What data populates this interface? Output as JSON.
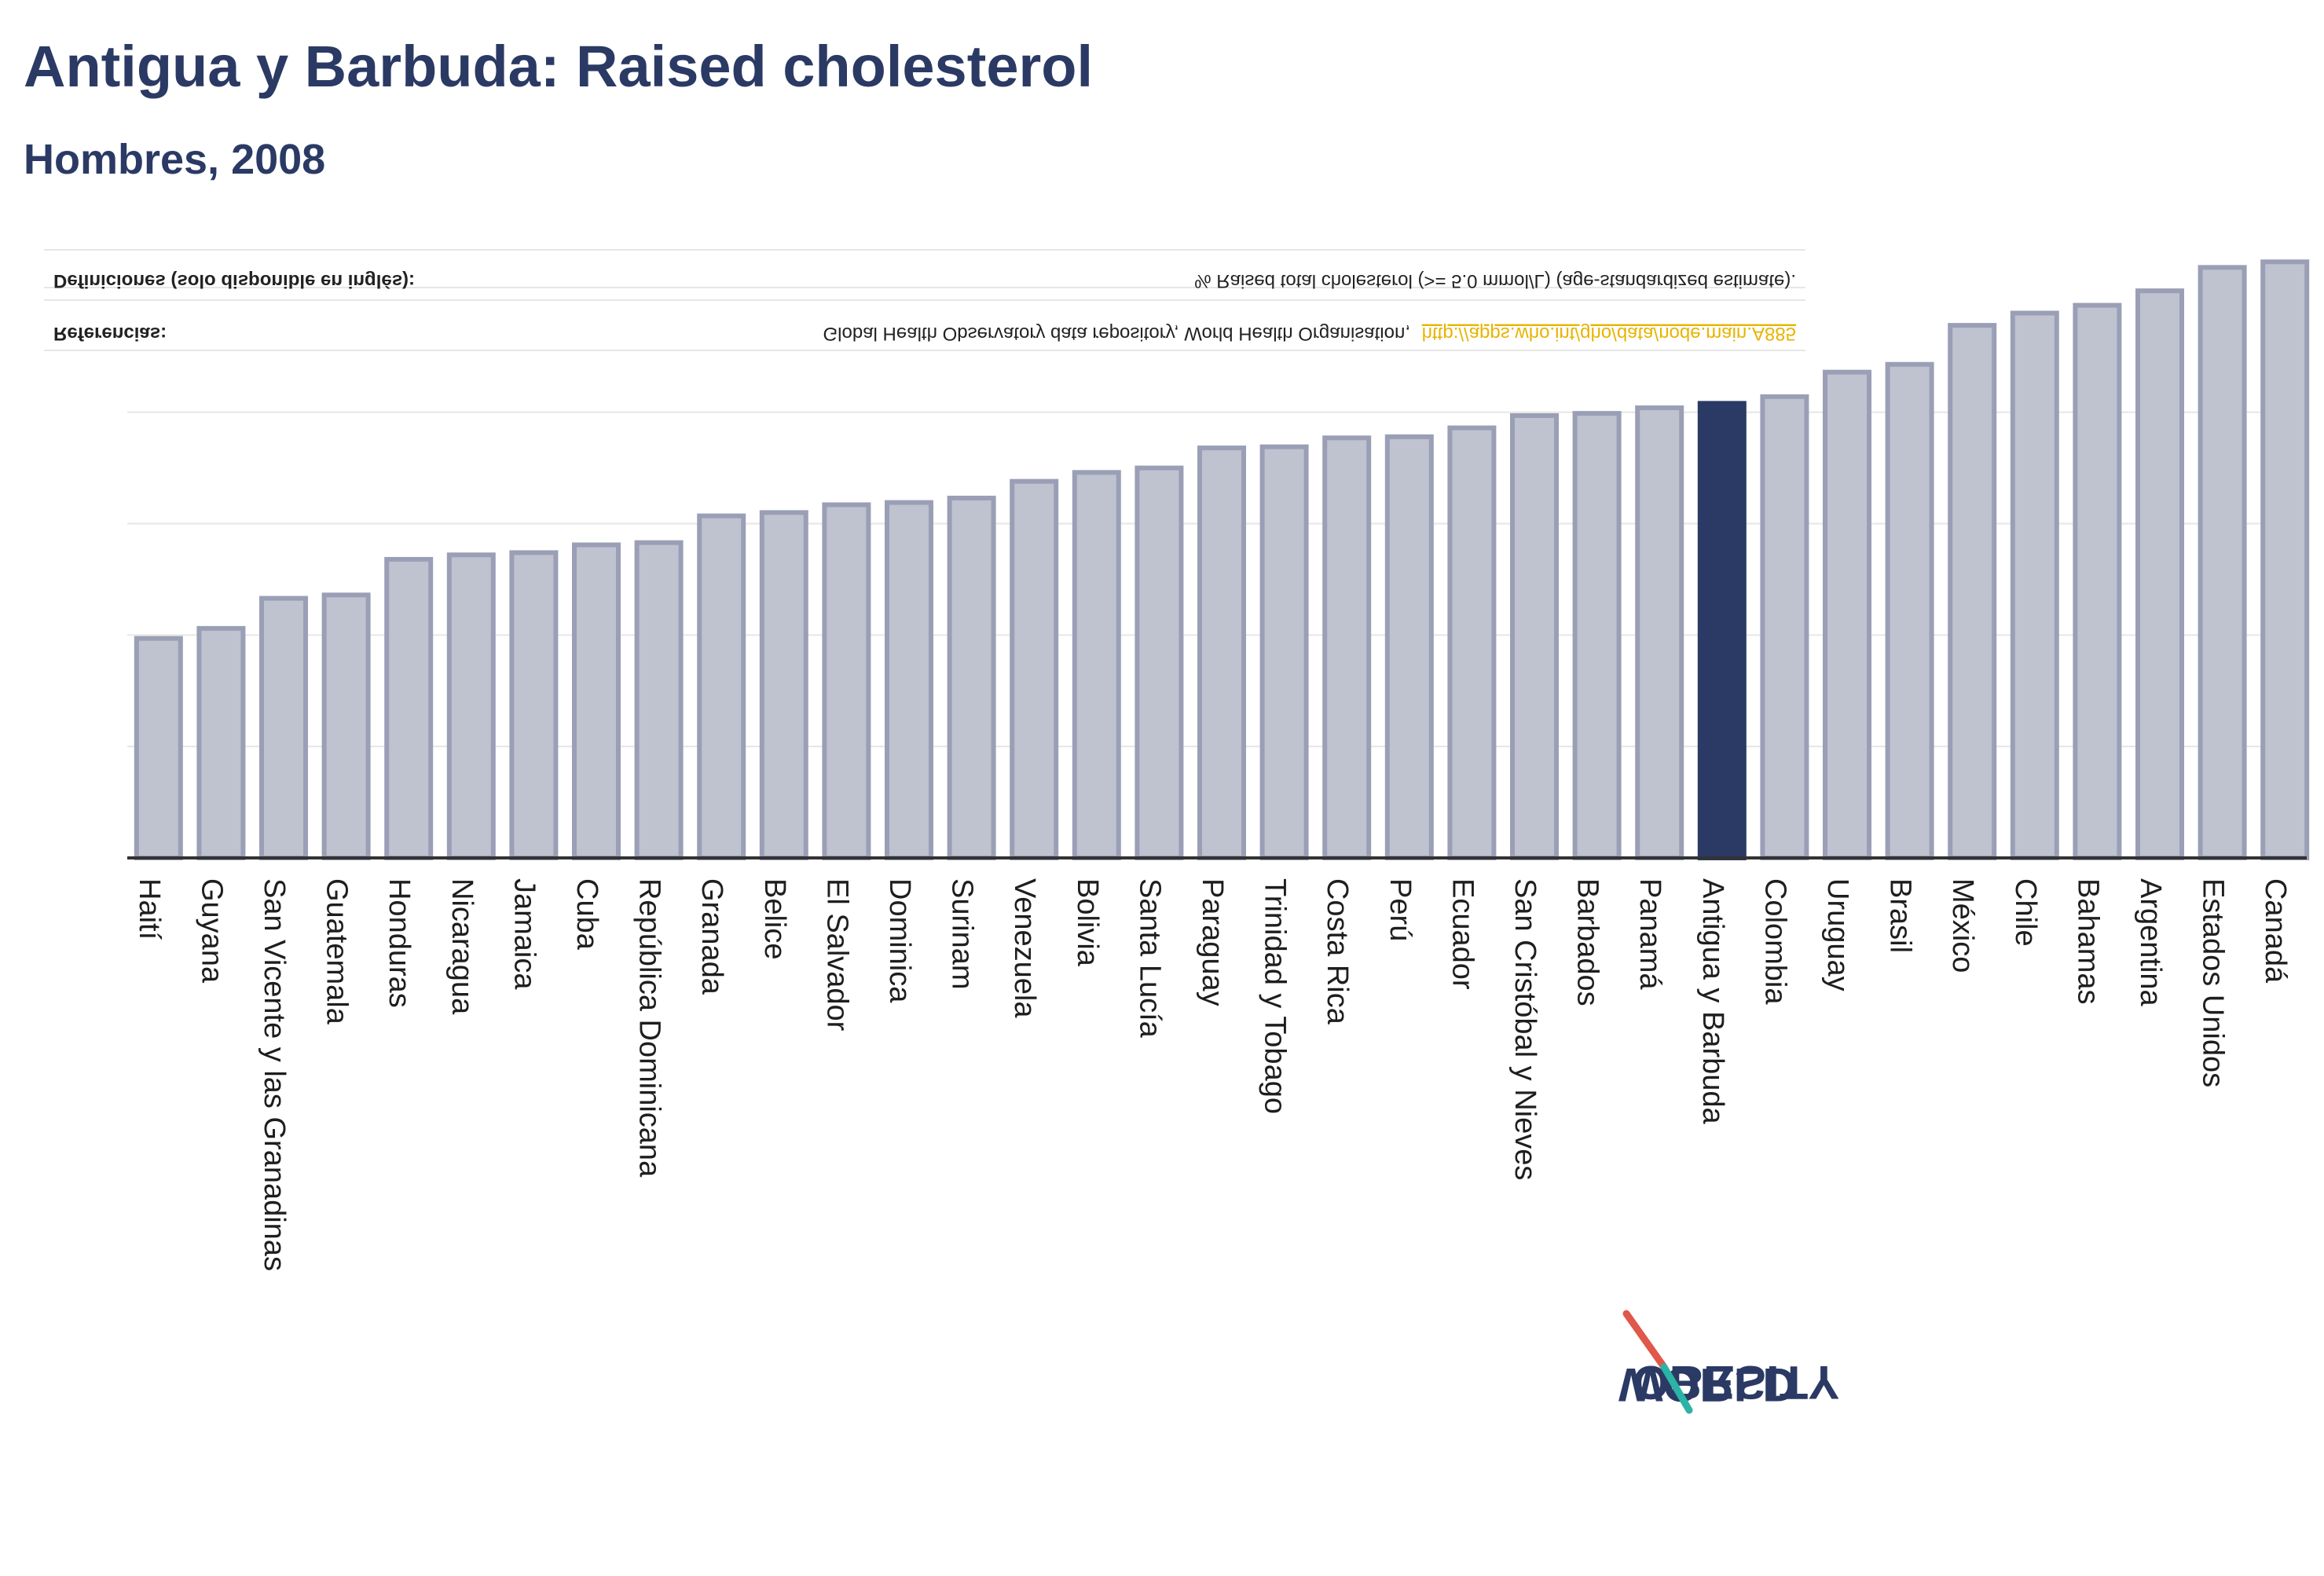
{
  "title": "Antigua y Barbuda: Raised cholesterol",
  "subtitle": "Hombres, 2008",
  "notes": {
    "definitions_label": "Definiciones (solo disponible en inglés):",
    "definitions_text": "% Raised total cholesterol (>= 5.0 mmol/L) (age-standardized estimate).",
    "references_label": "Referencias:",
    "references_text": "Global Health Observatory data repository, World Health Organisation,",
    "references_link": "http://apps.who.int/gho/data/node.main.A885"
  },
  "logo": {
    "line1": "OBESITY",
    "line2": "WORLD"
  },
  "colors": {
    "bar": "#bfc2cf",
    "bar_stroke": "#9a9fb6",
    "highlight": "#2b3a64",
    "axis": "#333333"
  },
  "chart_data": {
    "type": "bar",
    "title": "Antigua y Barbuda: Raised cholesterol",
    "subtitle": "Hombres, 2008",
    "xlabel": "",
    "ylabel": "",
    "ylim": [
      0,
      55
    ],
    "grid": true,
    "highlight": "Antigua y Barbuda",
    "categories": [
      "Haití",
      "Guyana",
      "San Vicente y las Granadinas",
      "Guatemala",
      "Honduras",
      "Nicaragua",
      "Jamaica",
      "Cuba",
      "República Dominicana",
      "Granada",
      "Belice",
      "El Salvador",
      "Dominica",
      "Surinam",
      "Venezuela",
      "Bolivia",
      "Santa Lucía",
      "Paraguay",
      "Trinidad y Tobago",
      "Costa Rica",
      "Perú",
      "Ecuador",
      "San Cristóbal y Nieves",
      "Barbados",
      "Panamá",
      "Antigua y Barbuda",
      "Colombia",
      "Uruguay",
      "Brasil",
      "México",
      "Chile",
      "Bahamas",
      "Argentina",
      "Estados Unidos",
      "Canadá"
    ],
    "values": [
      19.7,
      20.6,
      23.3,
      23.6,
      26.8,
      27.2,
      27.4,
      28.1,
      28.3,
      30.7,
      31.0,
      31.7,
      31.9,
      32.3,
      33.8,
      34.6,
      35.0,
      36.8,
      36.9,
      37.7,
      37.8,
      38.6,
      39.7,
      39.9,
      40.4,
      40.8,
      41.4,
      43.6,
      44.3,
      47.8,
      48.9,
      49.6,
      50.9,
      53.0,
      53.5
    ]
  }
}
